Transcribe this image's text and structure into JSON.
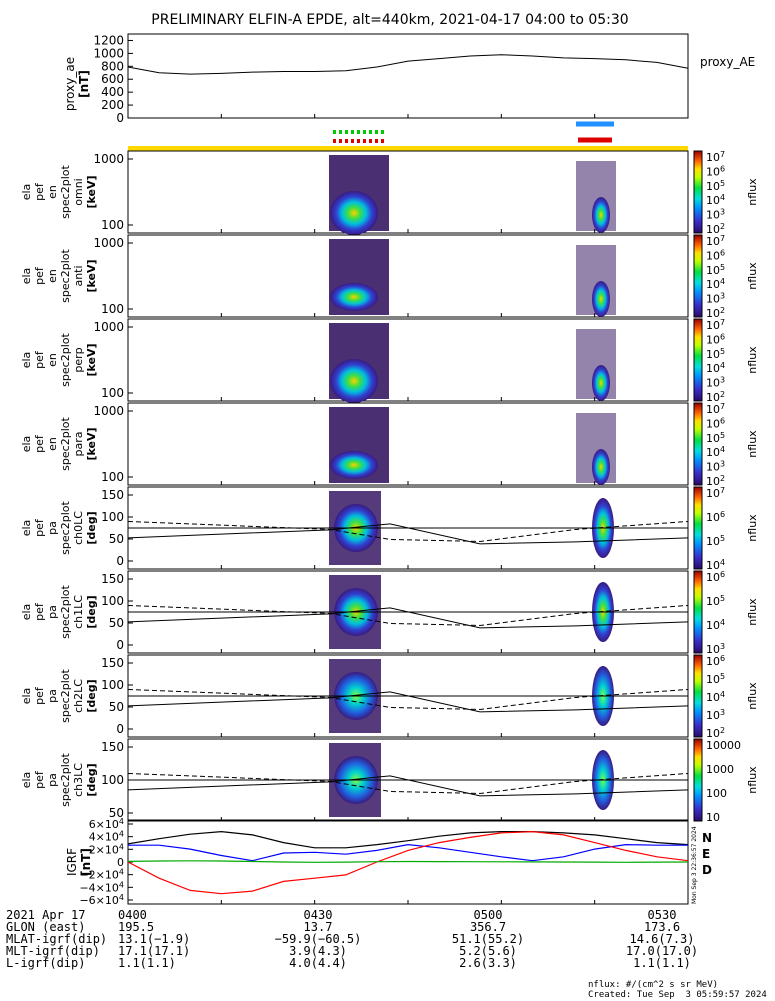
{
  "title": "PRELIMINARY ELFIN-A EPDE, alt=440km, 2021-04-17 04:00 to 05:30",
  "chart_data": {
    "type": "line",
    "time_range": [
      "2021-04-17 04:00",
      "2021-04-17 05:30"
    ],
    "x_tick_labels": [
      "0400",
      "0430",
      "0500",
      "0530"
    ],
    "proxy_ae": {
      "ylabel": [
        "proxy_ae",
        "[nT]"
      ],
      "legend": "proxy_AE",
      "yticks": [
        "1200",
        "1000",
        "800",
        "600",
        "400",
        "200",
        "0"
      ],
      "ylim": [
        0,
        1300
      ],
      "x": [
        0,
        5,
        10,
        15,
        20,
        25,
        30,
        35,
        40,
        45,
        50,
        55,
        60,
        65,
        70,
        75,
        80,
        85,
        90
      ],
      "values": [
        790,
        700,
        680,
        690,
        710,
        720,
        720,
        730,
        790,
        880,
        920,
        960,
        980,
        960,
        930,
        920,
        900,
        860,
        770
      ]
    },
    "energy_panels": [
      {
        "labels": [
          "ela",
          "pef",
          "en",
          "spec2plot",
          "omni",
          "[keV]"
        ],
        "yticks": [
          "1000",
          "100"
        ],
        "cbar_ticks": [
          "10^7",
          "10^6",
          "10^5",
          "10^4",
          "10^3",
          "10^2"
        ],
        "cbar_label": "nflux"
      },
      {
        "labels": [
          "ela",
          "pef",
          "en",
          "spec2plot",
          "anti",
          "[keV]"
        ],
        "yticks": [
          "1000",
          "100"
        ],
        "cbar_ticks": [
          "10^7",
          "10^6",
          "10^5",
          "10^4",
          "10^3",
          "10^2"
        ],
        "cbar_label": "nflux"
      },
      {
        "labels": [
          "ela",
          "pef",
          "en",
          "spec2plot",
          "perp",
          "[keV]"
        ],
        "yticks": [
          "1000",
          "100"
        ],
        "cbar_ticks": [
          "10^7",
          "10^6",
          "10^5",
          "10^4",
          "10^3",
          "10^2"
        ],
        "cbar_label": "nflux"
      },
      {
        "labels": [
          "ela",
          "pef",
          "en",
          "spec2plot",
          "para",
          "[keV]"
        ],
        "yticks": [
          "1000",
          "100"
        ],
        "cbar_ticks": [
          "10^7",
          "10^6",
          "10^5",
          "10^4",
          "10^3",
          "10^2"
        ],
        "cbar_label": "nflux"
      }
    ],
    "pitch_panels": [
      {
        "labels": [
          "ela",
          "pef",
          "pa",
          "spec2plot",
          "ch0LC",
          "[deg]"
        ],
        "yticks": [
          "150",
          "100",
          "50",
          "0"
        ],
        "cbar_ticks": [
          "10^7",
          "10^6",
          "10^5",
          "10^4"
        ],
        "cbar_label": "nflux"
      },
      {
        "labels": [
          "ela",
          "pef",
          "pa",
          "spec2plot",
          "ch1LC",
          "[deg]"
        ],
        "yticks": [
          "150",
          "100",
          "50",
          "0"
        ],
        "cbar_ticks": [
          "10^6",
          "10^5",
          "10^4",
          "10^3"
        ],
        "cbar_label": "nflux"
      },
      {
        "labels": [
          "ela",
          "pef",
          "pa",
          "spec2plot",
          "ch2LC",
          "[deg]"
        ],
        "yticks": [
          "150",
          "100",
          "50",
          "0"
        ],
        "cbar_ticks": [
          "10^6",
          "10^5",
          "10^4",
          "10^3",
          "10^2"
        ],
        "cbar_label": "nflux"
      },
      {
        "labels": [
          "ela",
          "pef",
          "pa",
          "spec2plot",
          "ch3LC",
          "[deg]"
        ],
        "yticks": [
          "150",
          "100",
          "50"
        ],
        "cbar_ticks": [
          "10000",
          "1000",
          "100",
          "10"
        ],
        "cbar_label": "nflux"
      }
    ],
    "igrf": {
      "ylabel": [
        "IGRF",
        "[nT]"
      ],
      "yticks": [
        "6×10^4",
        "4×10^4",
        "2×10^4",
        "0",
        "−2×10^4",
        "−4×10^4",
        "−6×10^4"
      ],
      "ylim": [
        -65000,
        65000
      ],
      "legend": [
        {
          "name": "N",
          "color": "#0000ff"
        },
        {
          "name": "E",
          "color": "#ff0000"
        },
        {
          "name": "D",
          "color": "#00aa00"
        }
      ],
      "x": [
        0,
        5,
        10,
        15,
        20,
        25,
        30,
        35,
        40,
        45,
        50,
        55,
        60,
        65,
        70,
        75,
        80,
        85,
        90
      ],
      "series": [
        {
          "color": "#000000",
          "values": [
            28000,
            36000,
            43000,
            47000,
            42000,
            30000,
            22000,
            22000,
            27000,
            33000,
            40000,
            45000,
            47000,
            47000,
            45000,
            42000,
            36000,
            30000,
            27000
          ]
        },
        {
          "color": "#0000ff",
          "values": [
            26000,
            26000,
            20000,
            10000,
            2000,
            14000,
            15000,
            12000,
            18000,
            27000,
            22000,
            15000,
            8000,
            2000,
            8000,
            20000,
            27000,
            26000,
            26000
          ]
        },
        {
          "color": "#ff0000",
          "values": [
            0,
            -25000,
            -44000,
            -49000,
            -45000,
            -30000,
            -25000,
            -20000,
            0,
            18000,
            30000,
            38000,
            45000,
            47000,
            42000,
            30000,
            18000,
            8000,
            2000
          ]
        },
        {
          "color": "#00aa00",
          "values": [
            1000,
            1500,
            1800,
            1500,
            800,
            0,
            -500,
            -200,
            500,
            800,
            600,
            400,
            300,
            200,
            0,
            -200,
            -400,
            -200,
            0
          ]
        }
      ]
    },
    "side_timestamp": "Mon Sep  3 22:36:57 2024"
  },
  "footer": {
    "rows": [
      {
        "label": "2021 Apr 17",
        "values": [
          "0400",
          "0430",
          "0500",
          "0530"
        ]
      },
      {
        "label": "GLON (east)",
        "values": [
          "195.5",
          "13.7",
          "356.7",
          "173.6"
        ]
      },
      {
        "label": "MLAT-igrf(dip)",
        "values": [
          "13.1(−1.9)",
          "−59.9(−60.5)",
          "51.1(55.2)",
          "14.6(7.3)"
        ]
      },
      {
        "label": "MLT-igrf(dip)",
        "values": [
          "17.1(17.1)",
          "3.9(4.3)",
          "5.2(5.6)",
          "17.0(17.0)"
        ]
      },
      {
        "label": "L-igrf(dip)",
        "values": [
          "1.1(1.1)",
          "4.0(4.4)",
          "2.6(3.3)",
          "1.1(1.1)"
        ]
      }
    ],
    "units": "nflux: #/(cm^2 s sr MeV)",
    "created": "Created: Tue Sep  3 05:59:57 2024"
  }
}
